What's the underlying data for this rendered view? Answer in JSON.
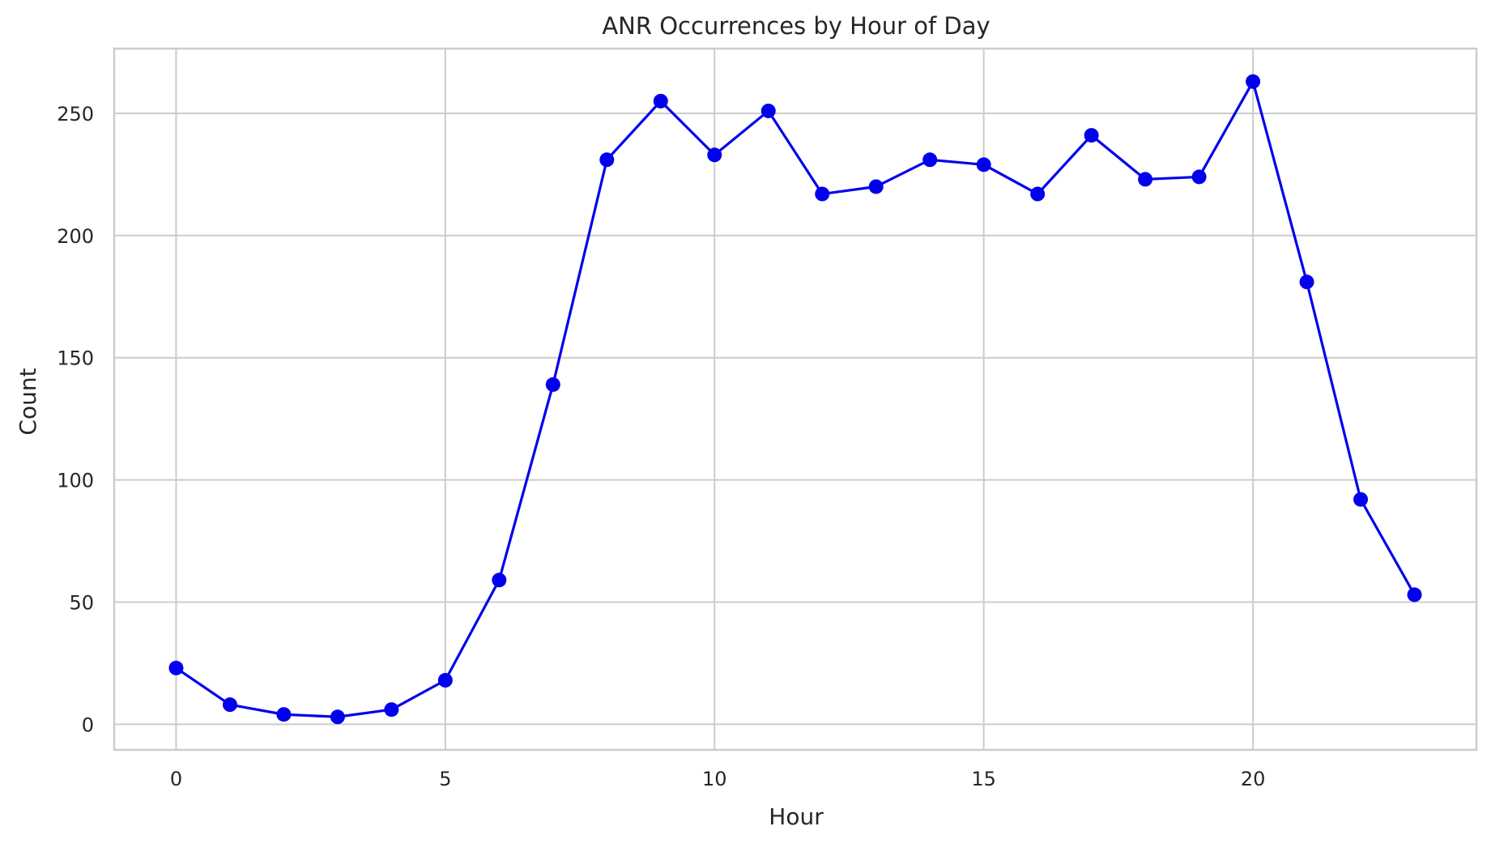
{
  "chart_data": {
    "type": "line",
    "title": "ANR Occurrences by Hour of Day",
    "xlabel": "Hour",
    "ylabel": "Count",
    "x": [
      0,
      1,
      2,
      3,
      4,
      5,
      6,
      7,
      8,
      9,
      10,
      11,
      12,
      13,
      14,
      15,
      16,
      17,
      18,
      19,
      20,
      21,
      22,
      23
    ],
    "series": [
      {
        "values": [
          23,
          8,
          4,
          3,
          6,
          18,
          59,
          139,
          231,
          255,
          233,
          251,
          217,
          220,
          231,
          229,
          217,
          241,
          223,
          224,
          263,
          181,
          92,
          53
        ]
      }
    ],
    "xticks": [
      0,
      5,
      10,
      15,
      20
    ],
    "yticks": [
      0,
      50,
      100,
      150,
      200,
      250
    ],
    "xlim": [
      -1.15,
      24.15
    ],
    "ylim": [
      -10.5,
      276.5
    ],
    "grid": true,
    "legend": "none",
    "colors": {
      "line": "#0000ee",
      "marker": "#0000ee",
      "grid": "#cccccc",
      "frame": "#cccccc",
      "text": "#262626"
    }
  }
}
